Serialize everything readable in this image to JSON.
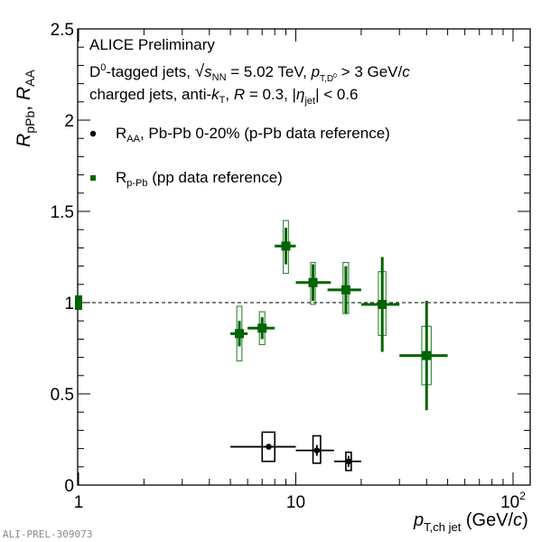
{
  "chart_data": {
    "type": "scatter",
    "title": "",
    "xlabel": "p_T,ch jet (GeV/c)",
    "xlabel_parts": {
      "main": "p",
      "sub": "T,ch jet",
      "unit": " (GeV/",
      "unit_italic": "c",
      "unit_close": ")"
    },
    "ylabel": "R_pPb, R_AA",
    "xscale": "log",
    "xlim": [
      0.97,
      120
    ],
    "ylim": [
      0,
      2.5
    ],
    "x_ticks": [
      {
        "v": 1,
        "label": "1"
      },
      {
        "v": 10,
        "label": "10"
      },
      {
        "v": 100,
        "label": "10",
        "sup": "2"
      }
    ],
    "y_ticks": [
      {
        "v": 0,
        "label": "0"
      },
      {
        "v": 0.5,
        "label": "0.5"
      },
      {
        "v": 1,
        "label": "1"
      },
      {
        "v": 1.5,
        "label": "1.5"
      },
      {
        "v": 2,
        "label": "2"
      },
      {
        "v": 2.5,
        "label": "2.5"
      }
    ],
    "reference_line": 1.0,
    "normalization_box": {
      "x": 1.0,
      "ylow": 0.96,
      "yhigh": 1.04,
      "color": "#006400"
    },
    "annotations": [
      "ALICE Preliminary",
      "D0-tagged jets, √sNN = 5.02 TeV, pT,D0 > 3 GeV/c",
      "charged jets, anti-kT, R = 0.3, |ηjet| < 0.6"
    ],
    "legend_position": "top-left",
    "series": [
      {
        "name": "R_AA, Pb-Pb 0-20% (p-Pb data reference)",
        "color": "#000000",
        "marker": "circle",
        "points": [
          {
            "x": 7.5,
            "xlow": 5,
            "xhigh": 10,
            "y": 0.21,
            "stat": 0.01,
            "syslow": 0.13,
            "syshigh": 0.29,
            "sysxlow": 7.0,
            "sysxhigh": 8.0
          },
          {
            "x": 12.5,
            "xlow": 10,
            "xhigh": 15,
            "y": 0.19,
            "stat": 0.03,
            "syslow": 0.12,
            "syshigh": 0.27,
            "sysxlow": 12.0,
            "sysxhigh": 13.0
          },
          {
            "x": 17.5,
            "xlow": 15,
            "xhigh": 20,
            "y": 0.13,
            "stat": 0.03,
            "syslow": 0.08,
            "syshigh": 0.18,
            "sysxlow": 17.0,
            "sysxhigh": 18.0
          }
        ]
      },
      {
        "name": "R_p-Pb (pp data reference)",
        "color": "#006400",
        "marker": "square",
        "points": [
          {
            "x": 5.5,
            "xlow": 5,
            "xhigh": 6,
            "y": 0.83,
            "stat": 0.07,
            "syslow": 0.68,
            "syshigh": 0.98,
            "sysxlow": 5.35,
            "sysxhigh": 5.65
          },
          {
            "x": 7.0,
            "xlow": 6,
            "xhigh": 8,
            "y": 0.86,
            "stat": 0.06,
            "syslow": 0.77,
            "syshigh": 0.95,
            "sysxlow": 6.8,
            "sysxhigh": 7.2
          },
          {
            "x": 9.0,
            "xlow": 8,
            "xhigh": 10,
            "y": 1.31,
            "stat": 0.1,
            "syslow": 1.16,
            "syshigh": 1.45,
            "sysxlow": 8.75,
            "sysxhigh": 9.25
          },
          {
            "x": 12.0,
            "xlow": 10,
            "xhigh": 14.5,
            "y": 1.11,
            "stat": 0.1,
            "syslow": 0.99,
            "syshigh": 1.22,
            "sysxlow": 11.7,
            "sysxhigh": 12.3
          },
          {
            "x": 17.0,
            "xlow": 14,
            "xhigh": 20,
            "y": 1.07,
            "stat": 0.13,
            "syslow": 0.94,
            "syshigh": 1.22,
            "sysxlow": 16.5,
            "sysxhigh": 17.5
          },
          {
            "x": 25.0,
            "xlow": 20,
            "xhigh": 30,
            "y": 0.99,
            "stat": 0.26,
            "syslow": 0.82,
            "syshigh": 1.17,
            "sysxlow": 24.0,
            "sysxhigh": 26.0
          },
          {
            "x": 40.0,
            "xlow": 30,
            "xhigh": 50,
            "y": 0.71,
            "stat": 0.3,
            "syslow": 0.55,
            "syshigh": 0.87,
            "sysxlow": 38.0,
            "sysxhigh": 42.0
          }
        ]
      }
    ]
  },
  "watermark": "ALI-PREL-309073",
  "legend": {
    "entries": [
      {
        "main": "R",
        "sub": "AA",
        "rest": ", Pb-Pb 0-20% (p-Pb data reference)"
      },
      {
        "main": "R",
        "sub": "p-Pb",
        "rest": " (pp data reference)"
      }
    ]
  },
  "text": {
    "experiment": "ALICE Preliminary",
    "line2": {
      "a": "D",
      "a_sup": "0",
      "b": "-tagged jets, ",
      "sqrt": "s",
      "sqrt_sub": "NN",
      "c": " = 5.02 TeV, ",
      "p": "p",
      "p_sub": "T,D",
      "p_sub_sup": "0",
      "d": " > 3 GeV/",
      "c_it": "c"
    },
    "line3": {
      "a": "charged jets, anti-",
      "k": "k",
      "k_sub": "T",
      "b": ", ",
      "R": "R",
      "c": " = 0.3, |",
      "eta": "η",
      "eta_sub": "jet",
      "d": "| < 0.6"
    },
    "ylabel": {
      "r1": "R",
      "s1": "pPb",
      "sep": ", ",
      "r2": "R",
      "s2": "AA"
    }
  }
}
